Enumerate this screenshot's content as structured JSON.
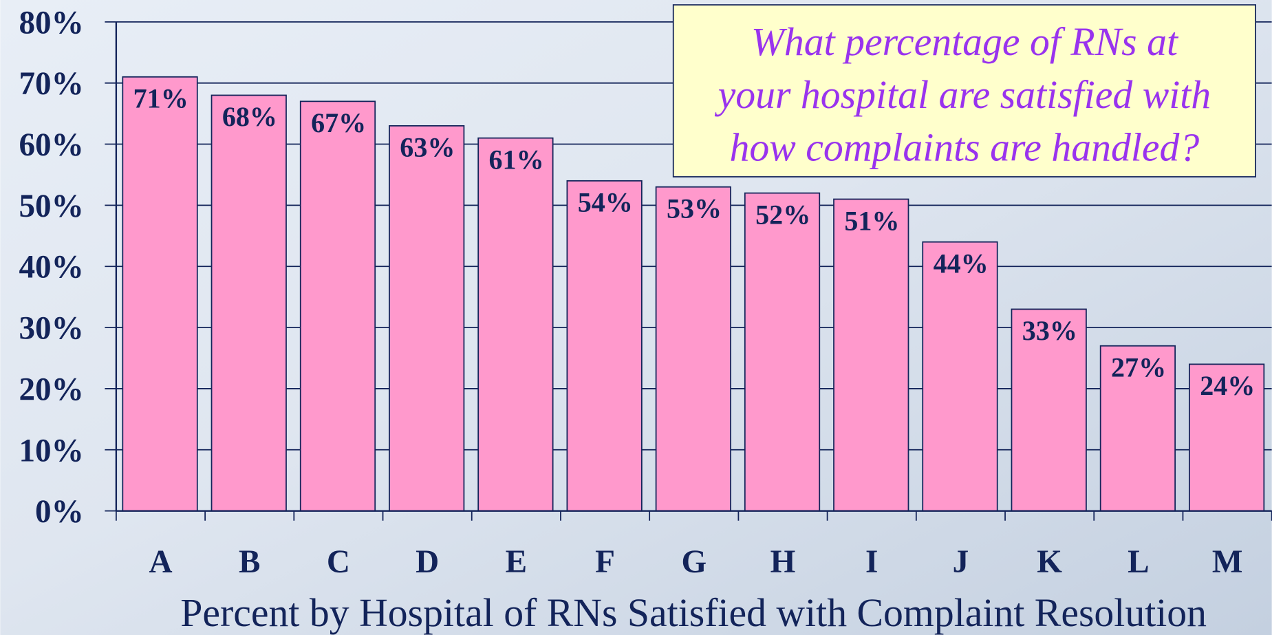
{
  "chart_data": {
    "type": "bar",
    "title": [
      "What percentage of RNs at",
      "your hospital are satisfied with",
      "how complaints are handled?"
    ],
    "x_label": "Percent by Hospital of RNs Satisfied with Complaint Resolution",
    "categories": [
      "A",
      "B",
      "C",
      "D",
      "E",
      "F",
      "G",
      "H",
      "I",
      "J",
      "K",
      "L",
      "M"
    ],
    "values": [
      71,
      68,
      67,
      63,
      61,
      54,
      53,
      52,
      51,
      44,
      33,
      27,
      24
    ],
    "value_labels": [
      "71%",
      "68%",
      "67%",
      "63%",
      "61%",
      "54%",
      "53%",
      "52%",
      "51%",
      "44%",
      "33%",
      "27%",
      "24%"
    ],
    "color": "#ff99cc",
    "ylim": [
      0,
      80
    ],
    "yticks": [
      {
        "value": 0,
        "label": "0%"
      },
      {
        "value": 10,
        "label": "10%"
      },
      {
        "value": 20,
        "label": "20%"
      },
      {
        "value": 30,
        "label": "30%"
      },
      {
        "value": 40,
        "label": "40%"
      },
      {
        "value": 50,
        "label": "50%"
      },
      {
        "value": 60,
        "label": "60%"
      },
      {
        "value": 70,
        "label": "70%"
      },
      {
        "value": 80,
        "label": "80%"
      }
    ],
    "grid": true
  }
}
